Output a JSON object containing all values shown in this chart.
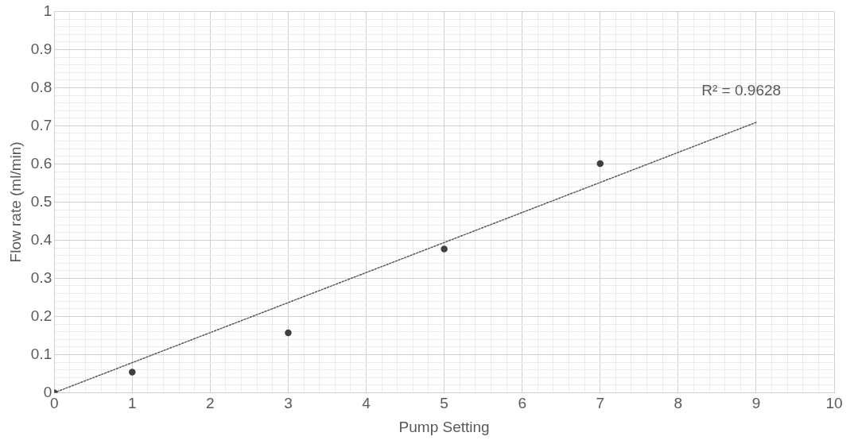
{
  "chart_data": {
    "type": "scatter",
    "xlabel": "Pump Setting",
    "ylabel": "Flow rate (ml/min)",
    "xlim": [
      0,
      10
    ],
    "ylim": [
      0,
      1
    ],
    "xticks": [
      0,
      {
        "value": 0.2,
        "label": null
      },
      {
        "value": 0.4,
        "label": null
      },
      {
        "value": 0.6,
        "label": null
      },
      {
        "value": 0.8,
        "label": null
      },
      1,
      {
        "value": 1.2,
        "label": null
      },
      {
        "value": 1.4,
        "label": null
      },
      {
        "value": 1.6,
        "label": null
      },
      {
        "value": 1.8,
        "label": null
      },
      2,
      {
        "value": 2.2,
        "label": null
      },
      {
        "value": 2.4,
        "label": null
      },
      {
        "value": 2.6,
        "label": null
      },
      {
        "value": 2.8,
        "label": null
      },
      3,
      {
        "value": 3.2,
        "label": null
      },
      {
        "value": 3.4,
        "label": null
      },
      {
        "value": 3.6,
        "label": null
      },
      {
        "value": 3.8,
        "label": null
      },
      4,
      {
        "value": 4.2,
        "label": null
      },
      {
        "value": 4.4,
        "label": null
      },
      {
        "value": 4.6,
        "label": null
      },
      {
        "value": 4.8,
        "label": null
      },
      5,
      {
        "value": 5.2,
        "label": null
      },
      {
        "value": 5.4,
        "label": null
      },
      {
        "value": 5.6,
        "label": null
      },
      {
        "value": 5.8,
        "label": null
      },
      6,
      {
        "value": 6.2,
        "label": null
      },
      {
        "value": 6.4,
        "label": null
      },
      {
        "value": 6.6,
        "label": null
      },
      {
        "value": 6.8,
        "label": null
      },
      7,
      {
        "value": 7.2,
        "label": null
      },
      {
        "value": 7.4,
        "label": null
      },
      {
        "value": 7.6,
        "label": null
      },
      {
        "value": 7.8,
        "label": null
      },
      8,
      {
        "value": 8.2,
        "label": null
      },
      {
        "value": 8.4,
        "label": null
      },
      {
        "value": 8.6,
        "label": null
      },
      {
        "value": 8.8,
        "label": null
      },
      9,
      {
        "value": 9.2,
        "label": null
      },
      {
        "value": 9.4,
        "label": null
      },
      {
        "value": 9.6,
        "label": null
      },
      {
        "value": 9.8,
        "label": null
      },
      10
    ],
    "yticks": [
      0,
      {
        "value": 0.02,
        "label": null
      },
      {
        "value": 0.04,
        "label": null
      },
      {
        "value": 0.06,
        "label": null
      },
      {
        "value": 0.08,
        "label": null
      },
      0.1,
      {
        "value": 0.12,
        "label": null
      },
      {
        "value": 0.14,
        "label": null
      },
      {
        "value": 0.16,
        "label": null
      },
      {
        "value": 0.18,
        "label": null
      },
      0.2,
      {
        "value": 0.22,
        "label": null
      },
      {
        "value": 0.24,
        "label": null
      },
      {
        "value": 0.26,
        "label": null
      },
      {
        "value": 0.28,
        "label": null
      },
      0.3,
      {
        "value": 0.32,
        "label": null
      },
      {
        "value": 0.34,
        "label": null
      },
      {
        "value": 0.36,
        "label": null
      },
      {
        "value": 0.38,
        "label": null
      },
      0.4,
      {
        "value": 0.42,
        "label": null
      },
      {
        "value": 0.44,
        "label": null
      },
      {
        "value": 0.46,
        "label": null
      },
      {
        "value": 0.48,
        "label": null
      },
      0.5,
      {
        "value": 0.52,
        "label": null
      },
      {
        "value": 0.54,
        "label": null
      },
      {
        "value": 0.56,
        "label": null
      },
      {
        "value": 0.58,
        "label": null
      },
      0.6,
      {
        "value": 0.62,
        "label": null
      },
      {
        "value": 0.64,
        "label": null
      },
      {
        "value": 0.66,
        "label": null
      },
      {
        "value": 0.68,
        "label": null
      },
      0.7,
      {
        "value": 0.72,
        "label": null
      },
      {
        "value": 0.74,
        "label": null
      },
      {
        "value": 0.76,
        "label": null
      },
      {
        "value": 0.78,
        "label": null
      },
      0.8,
      {
        "value": 0.82,
        "label": null
      },
      {
        "value": 0.84,
        "label": null
      },
      {
        "value": 0.86,
        "label": null
      },
      {
        "value": 0.88,
        "label": null
      },
      0.9,
      {
        "value": 0.92,
        "label": null
      },
      {
        "value": 0.94,
        "label": null
      },
      {
        "value": 0.96,
        "label": null
      },
      {
        "value": 0.98,
        "label": null
      },
      1
    ],
    "grid": true,
    "marker": "circle",
    "series": [
      {
        "type": "scatter",
        "color": "#404040",
        "x": [
          0,
          1,
          3,
          5,
          7
        ],
        "values": [
          0,
          0.054,
          0.157,
          0.377,
          0.601
        ]
      },
      {
        "type": "line",
        "color": "#595959",
        "line_style": "dotted",
        "marker": "none",
        "x": [
          0,
          9
        ],
        "values": [
          0,
          0.709
        ]
      }
    ],
    "annotations": [
      "R² = 0.9628"
    ]
  }
}
